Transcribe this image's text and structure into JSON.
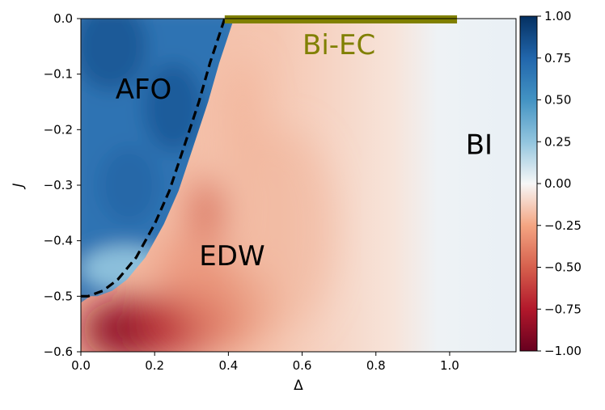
{
  "chart_data": {
    "type": "heatmap",
    "xlabel": "Δ",
    "ylabel": "J",
    "xlim": [
      0.0,
      1.18
    ],
    "ylim": [
      -0.6,
      0.0
    ],
    "x_ticks": [
      "0.0",
      "0.2",
      "0.4",
      "0.6",
      "0.8",
      "1.0"
    ],
    "x_tick_values": [
      0.0,
      0.2,
      0.4,
      0.6,
      0.8,
      1.0
    ],
    "y_ticks": [
      "0.0",
      "−0.1",
      "−0.2",
      "−0.3",
      "−0.4",
      "−0.5",
      "−0.6"
    ],
    "y_tick_values": [
      0.0,
      -0.1,
      -0.2,
      -0.3,
      -0.4,
      -0.5,
      -0.6
    ],
    "colormap": "RdBu",
    "colorbar": {
      "range": [
        -1.0,
        1.0
      ],
      "ticks": [
        "1.00",
        "0.75",
        "0.50",
        "0.25",
        "0.00",
        "−0.25",
        "−0.50",
        "−0.75",
        "−1.00"
      ],
      "tick_values": [
        1.0,
        0.75,
        0.5,
        0.25,
        0.0,
        -0.25,
        -0.5,
        -0.75,
        -1.0
      ]
    },
    "regions": [
      {
        "label": "AFO",
        "x": 0.17,
        "y": -0.13,
        "value_sign": "positive"
      },
      {
        "label": "EDW",
        "x": 0.41,
        "y": -0.43,
        "value_sign": "negative"
      },
      {
        "label": "BI",
        "x": 1.08,
        "y": -0.23,
        "value_sign": "near zero"
      },
      {
        "label": "Bi-EC",
        "x": 0.7,
        "y": -0.05,
        "color": "#808000"
      }
    ],
    "bi_ec_bar": {
      "x_start": 0.39,
      "x_end": 1.02,
      "y": 0.0,
      "color": "#808000"
    },
    "boundary_curve": {
      "style": "dashed",
      "color": "#000000",
      "points": [
        [
          0.0,
          -0.5
        ],
        [
          0.02,
          -0.5
        ],
        [
          0.06,
          -0.49
        ],
        [
          0.1,
          -0.47
        ],
        [
          0.15,
          -0.43
        ],
        [
          0.2,
          -0.37
        ],
        [
          0.24,
          -0.31
        ],
        [
          0.28,
          -0.23
        ],
        [
          0.32,
          -0.15
        ],
        [
          0.35,
          -0.08
        ],
        [
          0.37,
          -0.04
        ],
        [
          0.39,
          0.0
        ]
      ]
    }
  }
}
